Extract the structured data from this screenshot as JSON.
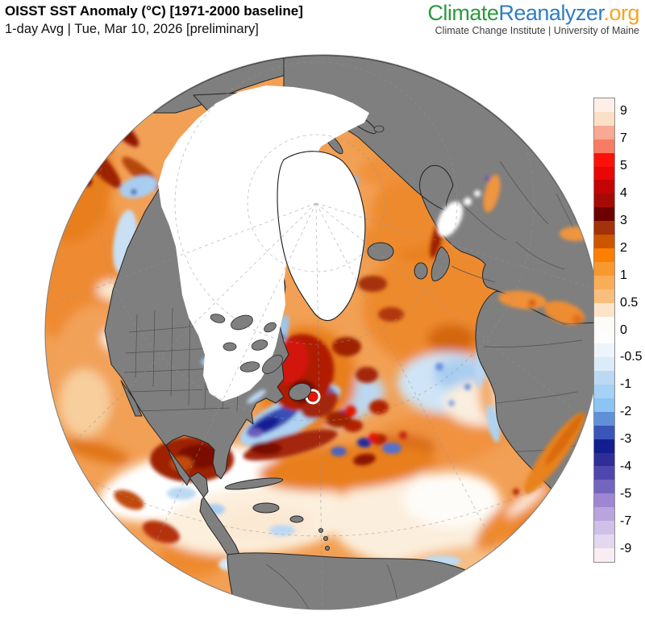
{
  "header": {
    "title": "OISST SST Anomaly (°C) [1971-2000 baseline]",
    "subtitle": "1-day Avg | Tue, Mar 10, 2026 [preliminary]"
  },
  "branding": {
    "logo_climate": "Climate",
    "logo_reanalyzer": "Reanalyzer",
    "logo_org": ".org",
    "logo_colors": {
      "climate": "#2b9a3e",
      "reanalyzer": "#2f7ec2",
      "org": "#f7a420"
    },
    "tagline": "Climate Change Institute | University of Maine"
  },
  "colorbar": {
    "unit": "°C",
    "border_color": "#8c8c8c",
    "band_colors": [
      "#FDEFE7",
      "#FBE0C6",
      "#F8A893",
      "#F87C63",
      "#FC100A",
      "#E80607",
      "#C50404",
      "#A50B04",
      "#6D0001",
      "#A33109",
      "#CD5500",
      "#FD7F01",
      "#F9982F",
      "#FAAD57",
      "#F9BD7E",
      "#FCE4C9",
      "#FEFCF9",
      "#FDFDFE",
      "#EDF4FB",
      "#DCEBF8",
      "#BCD9F3",
      "#A6D0F5",
      "#8CC4F4",
      "#6090D8",
      "#3A55B8",
      "#131F8E",
      "#2F2D96",
      "#4F46AE",
      "#7466BE",
      "#9D86D2",
      "#B9A4DE",
      "#CFC0E8",
      "#E2D9F0",
      "#F9EDF3"
    ],
    "ticks": [
      {
        "label": "9",
        "after_band": 1
      },
      {
        "label": "7",
        "after_band": 3
      },
      {
        "label": "5",
        "after_band": 5
      },
      {
        "label": "4",
        "after_band": 7
      },
      {
        "label": "3",
        "after_band": 9
      },
      {
        "label": "2",
        "after_band": 11
      },
      {
        "label": "1",
        "after_band": 13
      },
      {
        "label": "0.5",
        "after_band": 15
      },
      {
        "label": "0",
        "after_band": 17
      },
      {
        "label": "-0.5",
        "after_band": 19
      },
      {
        "label": "-1",
        "after_band": 21
      },
      {
        "label": "-2",
        "after_band": 23
      },
      {
        "label": "-3",
        "after_band": 25
      },
      {
        "label": "-4",
        "after_band": 27
      },
      {
        "label": "-5",
        "after_band": 29
      },
      {
        "label": "-7",
        "after_band": 31
      },
      {
        "label": "-9",
        "after_band": 33
      }
    ]
  },
  "map": {
    "type": "orthographic-globe",
    "view": "North Atlantic / Arctic",
    "ocean_base_color": "#F2A055",
    "land_color": "#7F7F7F",
    "ice_color": "#FFFFFF",
    "coast_color": "#242424",
    "inner_border_color": "#4A4A4A",
    "graticule_color": "#949494",
    "rim_color": "#828282"
  }
}
